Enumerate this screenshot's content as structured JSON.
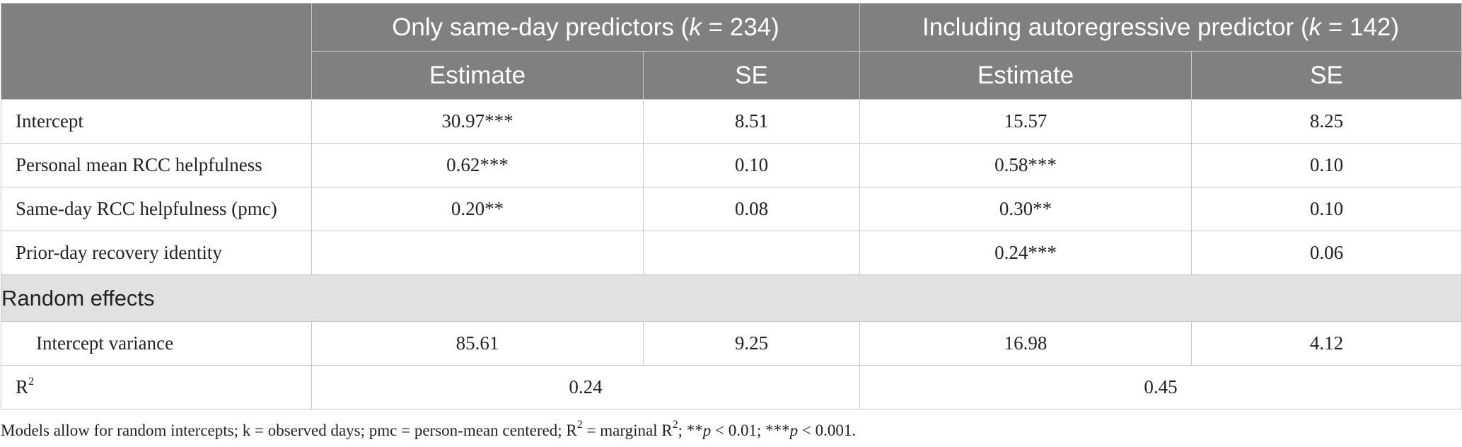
{
  "header": {
    "group1_prefix": "Only same-day predictors (",
    "group1_k": "k",
    "group1_suffix": " = 234)",
    "group2_prefix": "Including autoregressive predictor (",
    "group2_k": "k",
    "group2_suffix": " = 142)",
    "estimate_label": "Estimate",
    "se_label": "SE"
  },
  "rows": [
    {
      "label": "Intercept",
      "est1": "30.97***",
      "se1": "8.51",
      "est2": "15.57",
      "se2": "8.25"
    },
    {
      "label": "Personal mean RCC helpfulness",
      "est1": "0.62***",
      "se1": "0.10",
      "est2": "0.58***",
      "se2": "0.10"
    },
    {
      "label": "Same-day RCC helpfulness (pmc)",
      "est1": "0.20**",
      "se1": "0.08",
      "est2": "0.30**",
      "se2": "0.10"
    },
    {
      "label": "Prior-day recovery identity",
      "est1": "",
      "se1": "",
      "est2": "0.24***",
      "se2": "0.06"
    }
  ],
  "random_effects": {
    "section_label": "Random effects",
    "label": "Intercept variance",
    "est1": "85.61",
    "se1": "9.25",
    "est2": "16.98",
    "se2": "4.12"
  },
  "r2": {
    "label_base": "R",
    "label_sup": "2",
    "value1": "0.24",
    "value2": "0.45"
  },
  "note": {
    "part1": "Models allow for random intercepts; k = observed days; pmc = person-mean centered; R",
    "sup": "2",
    "part2": " = marginal R",
    "sup2": "2",
    "part3": "; **",
    "p1": "p",
    "part4": " < 0.01; ***",
    "p2": "p",
    "part5": " < 0.001."
  },
  "colors": {
    "header_bg": "#808080",
    "section_bg": "#e2e0e1",
    "border": "#c8c8c8"
  }
}
